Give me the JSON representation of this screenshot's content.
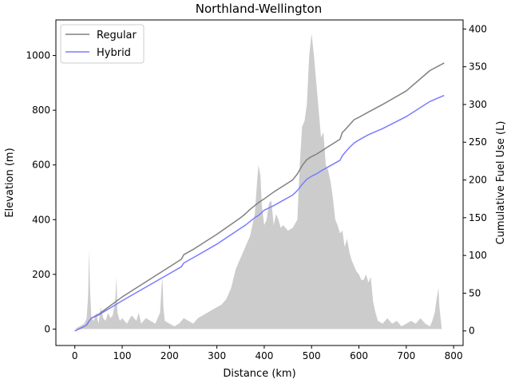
{
  "chart_data": {
    "type": "line",
    "title": "Northland-Wellington",
    "xlabel": "Distance (km)",
    "ylabel": "Elevation (m)",
    "y2label": "Cumulative Fuel Use (L)",
    "xlim": [
      -40,
      820
    ],
    "ylim": [
      -60,
      1130
    ],
    "y2lim": [
      -19.3,
      412
    ],
    "xticks": [
      0,
      100,
      200,
      300,
      400,
      500,
      600,
      700,
      800
    ],
    "yticks": [
      0,
      200,
      400,
      600,
      800,
      1000
    ],
    "y2ticks": [
      0,
      50,
      100,
      150,
      200,
      250,
      300,
      350,
      400
    ],
    "grid": false,
    "legend_position": "top-left",
    "elevation": {
      "color": "#cccccc",
      "points": [
        [
          0,
          0
        ],
        [
          5,
          5
        ],
        [
          10,
          10
        ],
        [
          15,
          15
        ],
        [
          20,
          20
        ],
        [
          25,
          40
        ],
        [
          28,
          120
        ],
        [
          30,
          290
        ],
        [
          32,
          150
        ],
        [
          35,
          40
        ],
        [
          40,
          30
        ],
        [
          45,
          60
        ],
        [
          50,
          20
        ],
        [
          55,
          80
        ],
        [
          60,
          40
        ],
        [
          65,
          30
        ],
        [
          70,
          60
        ],
        [
          75,
          40
        ],
        [
          80,
          50
        ],
        [
          85,
          100
        ],
        [
          88,
          190
        ],
        [
          90,
          60
        ],
        [
          95,
          30
        ],
        [
          100,
          40
        ],
        [
          110,
          20
        ],
        [
          120,
          50
        ],
        [
          130,
          30
        ],
        [
          135,
          60
        ],
        [
          140,
          20
        ],
        [
          150,
          40
        ],
        [
          160,
          30
        ],
        [
          170,
          20
        ],
        [
          180,
          60
        ],
        [
          183,
          150
        ],
        [
          185,
          190
        ],
        [
          187,
          80
        ],
        [
          190,
          30
        ],
        [
          200,
          20
        ],
        [
          210,
          10
        ],
        [
          220,
          20
        ],
        [
          230,
          40
        ],
        [
          240,
          30
        ],
        [
          250,
          20
        ],
        [
          260,
          40
        ],
        [
          270,
          50
        ],
        [
          280,
          60
        ],
        [
          290,
          70
        ],
        [
          300,
          80
        ],
        [
          310,
          90
        ],
        [
          320,
          110
        ],
        [
          330,
          150
        ],
        [
          340,
          220
        ],
        [
          350,
          260
        ],
        [
          360,
          300
        ],
        [
          370,
          340
        ],
        [
          380,
          420
        ],
        [
          385,
          540
        ],
        [
          388,
          600
        ],
        [
          392,
          560
        ],
        [
          395,
          450
        ],
        [
          400,
          380
        ],
        [
          405,
          400
        ],
        [
          410,
          460
        ],
        [
          415,
          470
        ],
        [
          420,
          380
        ],
        [
          425,
          420
        ],
        [
          430,
          400
        ],
        [
          435,
          370
        ],
        [
          440,
          380
        ],
        [
          450,
          360
        ],
        [
          460,
          370
        ],
        [
          470,
          400
        ],
        [
          475,
          600
        ],
        [
          480,
          740
        ],
        [
          485,
          760
        ],
        [
          490,
          820
        ],
        [
          495,
          1000
        ],
        [
          500,
          1080
        ],
        [
          505,
          1000
        ],
        [
          510,
          900
        ],
        [
          515,
          800
        ],
        [
          520,
          700
        ],
        [
          525,
          720
        ],
        [
          530,
          600
        ],
        [
          535,
          580
        ],
        [
          540,
          540
        ],
        [
          545,
          480
        ],
        [
          550,
          400
        ],
        [
          555,
          380
        ],
        [
          560,
          350
        ],
        [
          565,
          360
        ],
        [
          570,
          300
        ],
        [
          575,
          330
        ],
        [
          580,
          280
        ],
        [
          585,
          250
        ],
        [
          590,
          230
        ],
        [
          595,
          210
        ],
        [
          600,
          200
        ],
        [
          605,
          180
        ],
        [
          610,
          180
        ],
        [
          615,
          200
        ],
        [
          620,
          170
        ],
        [
          625,
          190
        ],
        [
          630,
          100
        ],
        [
          635,
          60
        ],
        [
          640,
          30
        ],
        [
          650,
          20
        ],
        [
          660,
          40
        ],
        [
          670,
          20
        ],
        [
          680,
          30
        ],
        [
          690,
          10
        ],
        [
          700,
          20
        ],
        [
          710,
          30
        ],
        [
          720,
          20
        ],
        [
          730,
          40
        ],
        [
          740,
          20
        ],
        [
          750,
          10
        ],
        [
          755,
          30
        ],
        [
          760,
          60
        ],
        [
          765,
          120
        ],
        [
          768,
          150
        ],
        [
          770,
          80
        ],
        [
          775,
          0
        ],
        [
          780,
          0
        ]
      ]
    },
    "series": [
      {
        "name": "Regular",
        "color": "#808080",
        "points": [
          [
            0,
            0
          ],
          [
            10,
            3
          ],
          [
            20,
            6
          ],
          [
            25,
            8
          ],
          [
            30,
            13
          ],
          [
            35,
            17
          ],
          [
            50,
            22
          ],
          [
            100,
            45
          ],
          [
            150,
            65
          ],
          [
            200,
            85
          ],
          [
            225,
            95
          ],
          [
            230,
            101
          ],
          [
            250,
            108
          ],
          [
            300,
            128
          ],
          [
            350,
            150
          ],
          [
            360,
            155
          ],
          [
            370,
            161
          ],
          [
            380,
            166
          ],
          [
            390,
            171
          ],
          [
            400,
            175
          ],
          [
            420,
            184
          ],
          [
            440,
            192
          ],
          [
            460,
            200
          ],
          [
            470,
            208
          ],
          [
            480,
            219
          ],
          [
            490,
            227
          ],
          [
            500,
            231
          ],
          [
            510,
            234
          ],
          [
            520,
            238
          ],
          [
            540,
            246
          ],
          [
            560,
            254
          ],
          [
            565,
            263
          ],
          [
            570,
            266
          ],
          [
            580,
            273
          ],
          [
            590,
            280
          ],
          [
            600,
            283
          ],
          [
            620,
            290
          ],
          [
            650,
            300
          ],
          [
            700,
            318
          ],
          [
            750,
            345
          ],
          [
            780,
            355
          ]
        ]
      },
      {
        "name": "Hybrid",
        "color": "#7b7bff",
        "points": [
          [
            0,
            0
          ],
          [
            10,
            3
          ],
          [
            20,
            6
          ],
          [
            25,
            8
          ],
          [
            30,
            13
          ],
          [
            35,
            17
          ],
          [
            50,
            21
          ],
          [
            100,
            40
          ],
          [
            150,
            58
          ],
          [
            200,
            76
          ],
          [
            225,
            85
          ],
          [
            230,
            90
          ],
          [
            250,
            97
          ],
          [
            300,
            115
          ],
          [
            350,
            136
          ],
          [
            360,
            140
          ],
          [
            370,
            145
          ],
          [
            380,
            150
          ],
          [
            390,
            154
          ],
          [
            400,
            160
          ],
          [
            420,
            166
          ],
          [
            440,
            173
          ],
          [
            460,
            180
          ],
          [
            470,
            186
          ],
          [
            480,
            194
          ],
          [
            490,
            201
          ],
          [
            500,
            205
          ],
          [
            510,
            208
          ],
          [
            520,
            212
          ],
          [
            540,
            219
          ],
          [
            560,
            226
          ],
          [
            565,
            232
          ],
          [
            570,
            236
          ],
          [
            580,
            243
          ],
          [
            590,
            249
          ],
          [
            600,
            253
          ],
          [
            620,
            260
          ],
          [
            650,
            268
          ],
          [
            700,
            284
          ],
          [
            750,
            304
          ],
          [
            780,
            312
          ]
        ]
      }
    ]
  }
}
